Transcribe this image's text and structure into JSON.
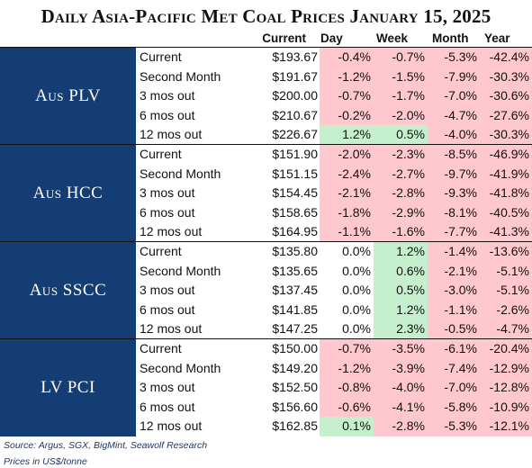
{
  "title": "Daily Asia-Pacific Met Coal Prices January 15, 2025",
  "headers": {
    "current": "Current",
    "day": "Day",
    "week": "Week",
    "month": "Month",
    "year": "Year"
  },
  "groups": [
    {
      "label": "Aus PLV",
      "rows": [
        {
          "name": "Current",
          "price": "$193.67",
          "day": "-0.4%",
          "week": "-0.7%",
          "month": "-5.3%",
          "year": "-42.4%"
        },
        {
          "name": "Second Month",
          "price": "$191.67",
          "day": "-1.2%",
          "week": "-1.5%",
          "month": "-7.9%",
          "year": "-30.3%"
        },
        {
          "name": "3 mos out",
          "price": "$200.00",
          "day": "-0.7%",
          "week": "-1.7%",
          "month": "-7.0%",
          "year": "-30.6%"
        },
        {
          "name": "6 mos out",
          "price": "$210.67",
          "day": "-0.2%",
          "week": "-2.0%",
          "month": "-4.7%",
          "year": "-27.6%"
        },
        {
          "name": "12 mos out",
          "price": "$226.67",
          "day": "1.2%",
          "week": "0.5%",
          "month": "-4.0%",
          "year": "-30.3%"
        }
      ]
    },
    {
      "label": "Aus HCC",
      "rows": [
        {
          "name": "Current",
          "price": "$151.90",
          "day": "-2.0%",
          "week": "-2.3%",
          "month": "-8.5%",
          "year": "-46.9%"
        },
        {
          "name": "Second Month",
          "price": "$151.15",
          "day": "-2.4%",
          "week": "-2.7%",
          "month": "-9.7%",
          "year": "-41.9%"
        },
        {
          "name": "3 mos out",
          "price": "$154.45",
          "day": "-2.1%",
          "week": "-2.8%",
          "month": "-9.3%",
          "year": "-41.8%"
        },
        {
          "name": "6 mos out",
          "price": "$158.65",
          "day": "-1.8%",
          "week": "-2.9%",
          "month": "-8.1%",
          "year": "-40.5%"
        },
        {
          "name": "12 mos out",
          "price": "$164.95",
          "day": "-1.1%",
          "week": "-1.6%",
          "month": "-7.7%",
          "year": "-41.3%"
        }
      ]
    },
    {
      "label": "Aus SSCC",
      "rows": [
        {
          "name": "Current",
          "price": "$135.80",
          "day": "0.0%",
          "week": "1.2%",
          "month": "-1.4%",
          "year": "-13.6%"
        },
        {
          "name": "Second Month",
          "price": "$135.65",
          "day": "0.0%",
          "week": "0.6%",
          "month": "-2.1%",
          "year": "-5.1%"
        },
        {
          "name": "3 mos out",
          "price": "$137.45",
          "day": "0.0%",
          "week": "0.5%",
          "month": "-3.0%",
          "year": "-5.1%"
        },
        {
          "name": "6 mos out",
          "price": "$141.85",
          "day": "0.0%",
          "week": "1.2%",
          "month": "-1.1%",
          "year": "-2.6%"
        },
        {
          "name": "12 mos out",
          "price": "$147.25",
          "day": "0.0%",
          "week": "2.3%",
          "month": "-0.5%",
          "year": "-4.7%"
        }
      ]
    },
    {
      "label": "LV PCI",
      "rows": [
        {
          "name": "Current",
          "price": "$150.00",
          "day": "-0.7%",
          "week": "-3.5%",
          "month": "-6.1%",
          "year": "-20.4%"
        },
        {
          "name": "Second Month",
          "price": "$149.20",
          "day": "-1.2%",
          "week": "-3.9%",
          "month": "-7.4%",
          "year": "-12.9%"
        },
        {
          "name": "3 mos out",
          "price": "$152.50",
          "day": "-0.8%",
          "week": "-4.0%",
          "month": "-7.0%",
          "year": "-12.8%"
        },
        {
          "name": "6 mos out",
          "price": "$156.60",
          "day": "-0.6%",
          "week": "-4.1%",
          "month": "-5.8%",
          "year": "-10.9%"
        },
        {
          "name": "12 mos out",
          "price": "$162.85",
          "day": "0.1%",
          "week": "-2.8%",
          "month": "-5.3%",
          "year": "-12.1%"
        }
      ]
    }
  ],
  "footer": {
    "source": "Source: Argus, SGX, BigMint, Seawolf Research",
    "units": "Prices in US$/tonne"
  },
  "colors": {
    "label_bg": "#143d73",
    "negative": "#ffc7ce",
    "positive": "#c6efce"
  }
}
